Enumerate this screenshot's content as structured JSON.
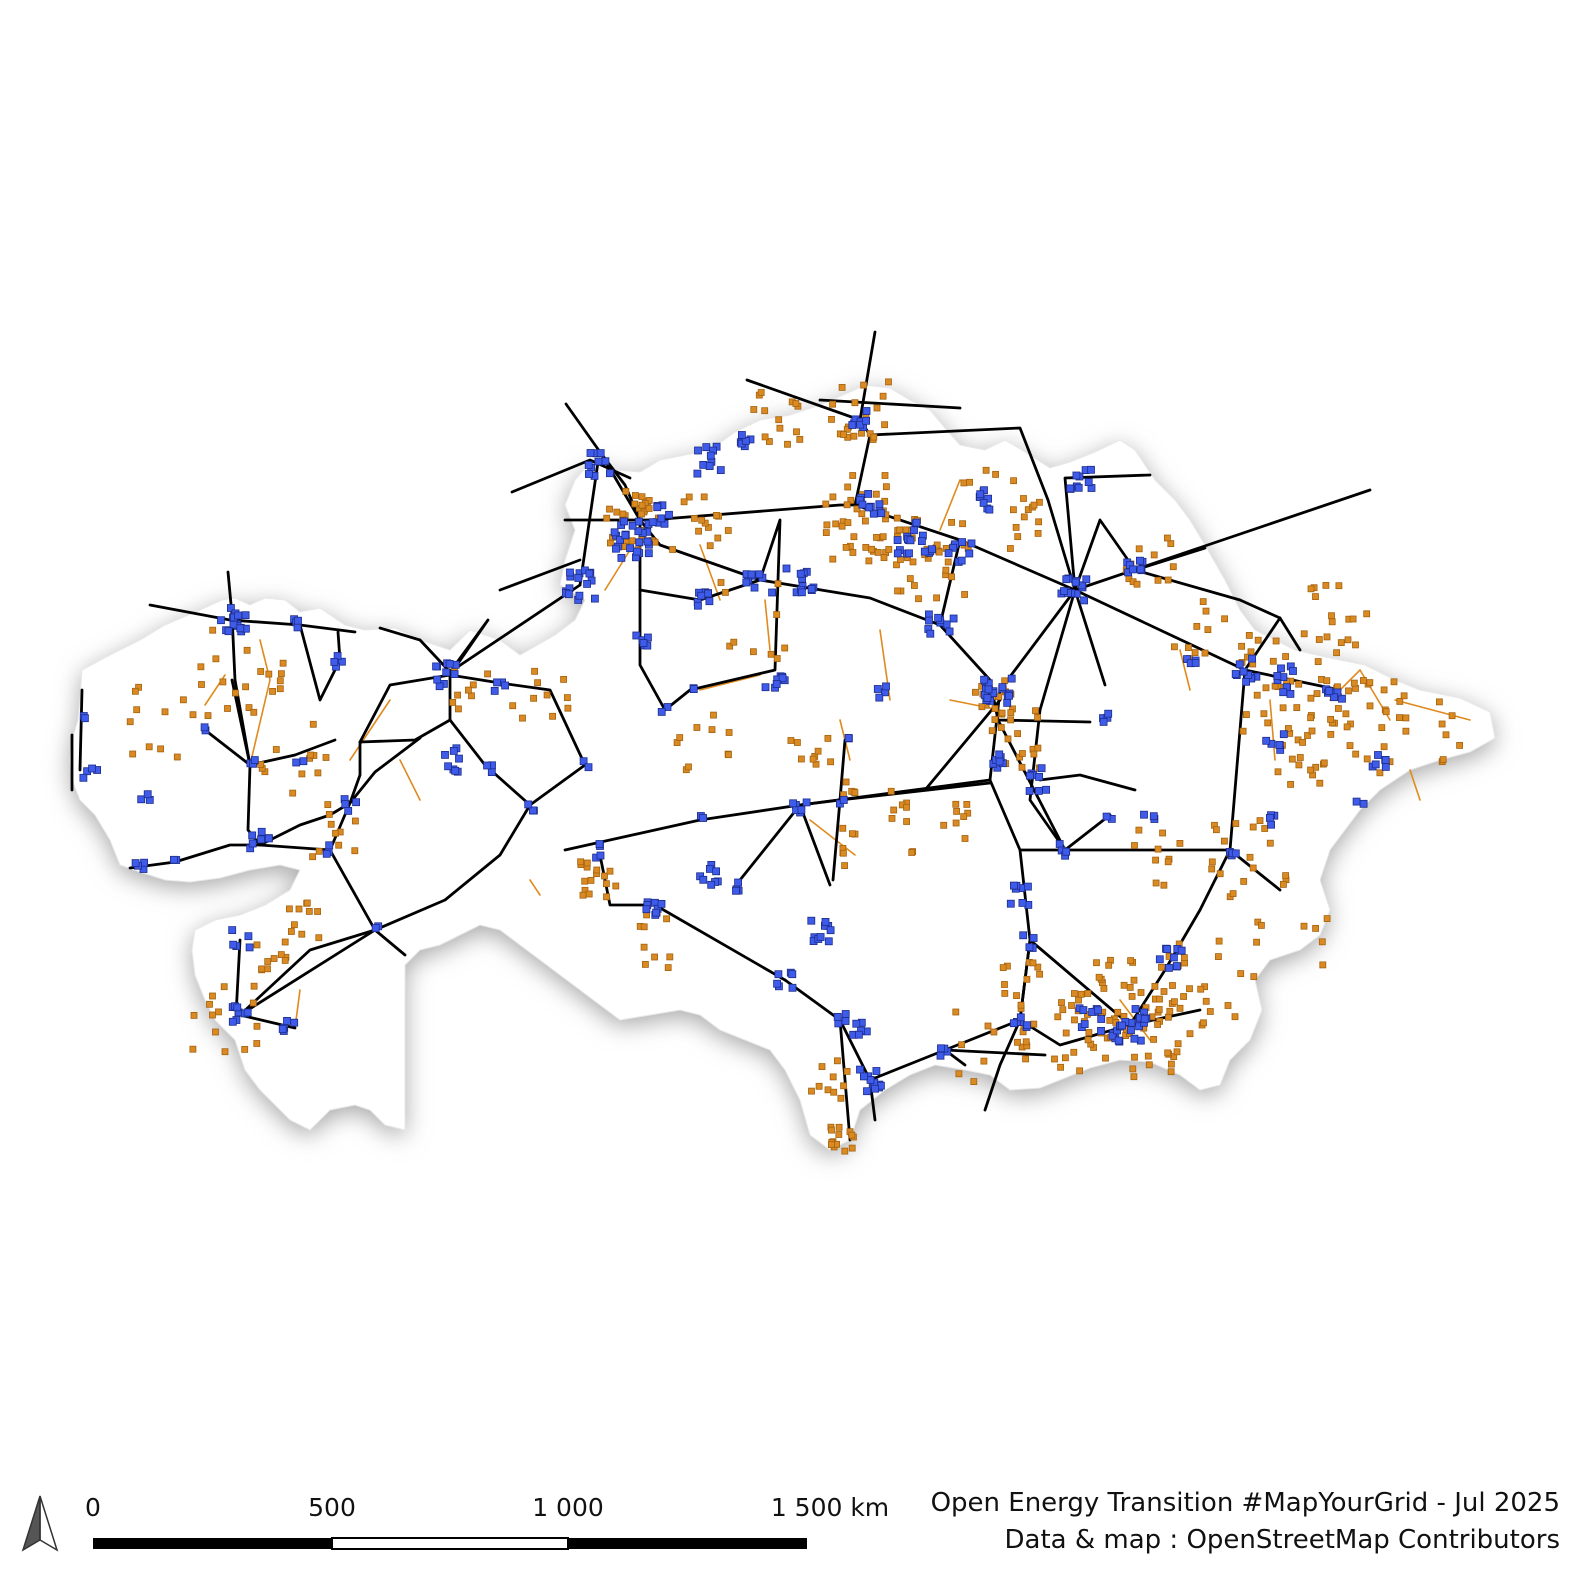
{
  "map": {
    "region": "Kazakhstan",
    "colors": {
      "country_fill": "#ffffff",
      "country_shadow": "#b9b9b9",
      "line_high_voltage": "#000000",
      "line_lower_voltage": "#e08a1e",
      "substation_major": "#3f5bea",
      "substation_minor": "#d98a22"
    },
    "layers": [
      "country-outline",
      "power-lines-high-voltage",
      "power-lines-lower-voltage",
      "substations-major",
      "substations-minor"
    ]
  },
  "north_arrow": {
    "icon": "north-arrow-icon"
  },
  "scale_bar": {
    "labels": [
      "0",
      "500",
      "1 000",
      "1 500 km"
    ]
  },
  "credits": {
    "line1": "Open Energy Transition #MapYourGrid - Jul 2025",
    "line2": "Data & map : OpenStreetMap Contributors"
  }
}
